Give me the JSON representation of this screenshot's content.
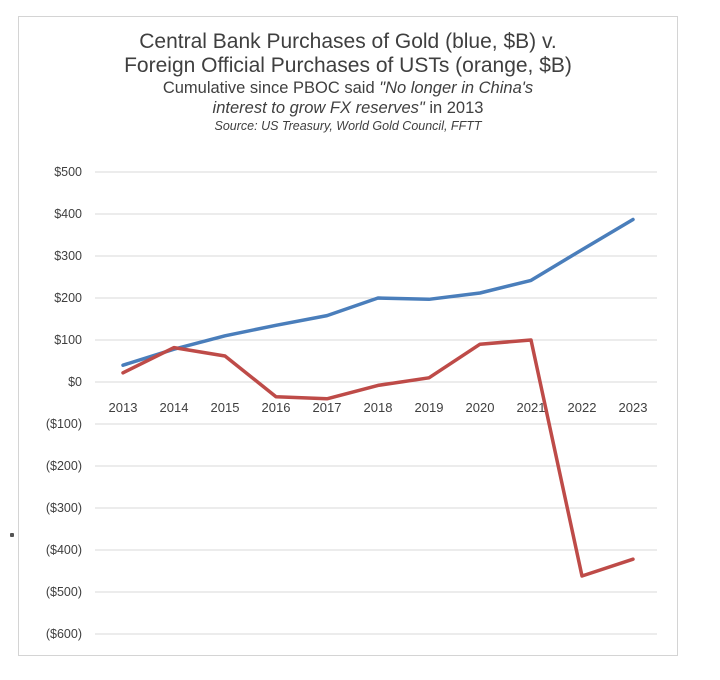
{
  "title": {
    "line1": "Central Bank Purchases of Gold (blue, $B) v.",
    "line2": "Foreign Official Purchases of USTs (orange, $B)",
    "line3_prefix": "Cumulative since PBOC said ",
    "line3_quote": "\"No longer in China's",
    "line4_quote": "interest to grow FX reserves\"",
    "line4_suffix": " in 2013",
    "source": "Source: US Treasury, World Gold Council, FFTT"
  },
  "colors": {
    "gold_line": "#4a7ebb",
    "ust_line": "#be4b48",
    "grid": "#d9d9d9",
    "text": "#3f3f3f"
  },
  "chart_data": {
    "type": "line",
    "title": "Central Bank Purchases of Gold (blue, $B) v. Foreign Official Purchases of USTs (orange, $B)",
    "subtitle": "Cumulative since PBOC said \"No longer in China's interest to grow FX reserves\" in 2013",
    "source": "Source: US Treasury, World Gold Council, FFTT",
    "categories": [
      "2013",
      "2014",
      "2015",
      "2016",
      "2017",
      "2018",
      "2019",
      "2020",
      "2021",
      "2022",
      "2023"
    ],
    "series": [
      {
        "values": [
          40,
          78,
          110,
          135,
          158,
          200,
          197,
          212,
          242,
          315,
          387
        ]
      },
      {
        "values": [
          22,
          82,
          62,
          -35,
          -40,
          -8,
          10,
          90,
          100,
          -462,
          -422
        ]
      }
    ],
    "yticks": [
      500,
      400,
      300,
      200,
      100,
      0,
      -100,
      -200,
      -300,
      -400,
      -500,
      -600
    ],
    "ytick_labels": [
      "$500",
      "$400",
      "$300",
      "$200",
      "$100",
      "$0",
      "($100)",
      "($200)",
      "($300)",
      "($400)",
      "($500)",
      "($600)"
    ],
    "ylim": [
      -600,
      500
    ],
    "xlabel": "",
    "ylabel": "",
    "grid": true,
    "legend": "none"
  }
}
